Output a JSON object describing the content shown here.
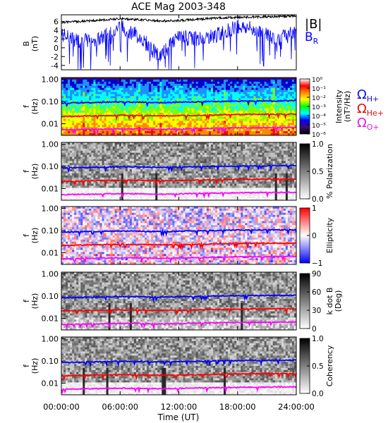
{
  "title": "ACE Mag 2003-348",
  "x_axis": {
    "label": "Time (UT)",
    "ticks": [
      "00:00:00",
      "06:00:00",
      "12:00:00",
      "18:00:00",
      "24:00:00"
    ],
    "range_hours": [
      0,
      24
    ]
  },
  "legend": {
    "b_magnitude": "|B|",
    "b_r": "B",
    "b_r_sub": "R",
    "omega_h": "Ω",
    "omega_h_sub": "H+",
    "omega_he": "Ω",
    "omega_he_sub": "He+",
    "omega_o": "Ω",
    "omega_o_sub": "O+"
  },
  "colors": {
    "b_magnitude": "#000000",
    "b_r": "#0000ff",
    "h_plus": "#0000ff",
    "he_plus": "#ff0000",
    "o_plus": "#ff00ff",
    "legend_h": "#1010e0",
    "legend_he": "#e01010",
    "legend_o": "#e020e0"
  },
  "chart_data": [
    {
      "type": "line",
      "panel": "B",
      "ylabel": "B",
      "yunit": "(nT)",
      "ylim": [
        -5,
        7.5
      ],
      "yticks": [
        6,
        4,
        2,
        0,
        -2,
        -4
      ],
      "series": [
        {
          "name": "|B|",
          "color": "#000000",
          "x": [
            0,
            2,
            4,
            6,
            8,
            10,
            12,
            14,
            16,
            18,
            20,
            22,
            24
          ],
          "values": [
            5.8,
            6.0,
            6.3,
            6.6,
            6.4,
            6.1,
            6.2,
            6.5,
            6.8,
            6.9,
            7.0,
            7.1,
            7.2
          ]
        },
        {
          "name": "B_R",
          "color": "#0000ff",
          "x": [
            0,
            2,
            4,
            6,
            8,
            10,
            12,
            14,
            16,
            18,
            20,
            22,
            24
          ],
          "values": [
            3.0,
            1.5,
            2.0,
            5.0,
            2.5,
            -2.0,
            2.5,
            2.0,
            3.0,
            5.0,
            4.0,
            2.0,
            3.5
          ]
        }
      ]
    },
    {
      "type": "heatmap",
      "panel": "Intensity",
      "ylabel": "f",
      "yunit": "(Hz)",
      "yscale": "log",
      "ylim": [
        0.003,
        1.2
      ],
      "yticks": [
        "1.00",
        "0.10",
        "0.01"
      ],
      "colorbar": {
        "label": "Intensity",
        "unit": "(nT²/Hz)",
        "ticks": [
          "10⁰",
          "10⁻¹",
          "10⁻²",
          "10⁻³",
          "10⁻⁴",
          "10⁻⁵",
          "10⁻⁶"
        ]
      }
    },
    {
      "type": "heatmap",
      "panel": "Polarization",
      "ylabel": "f",
      "yunit": "(Hz)",
      "yscale": "log",
      "ylim": [
        0.003,
        1.2
      ],
      "yticks": [
        "1.00",
        "0.10",
        "0.01"
      ],
      "colorbar": {
        "label": "% Polarization",
        "ticks": [
          "1.0",
          "0.5",
          "0.0"
        ]
      }
    },
    {
      "type": "heatmap",
      "panel": "Ellipticity",
      "ylabel": "f",
      "yunit": "(Hz)",
      "yscale": "log",
      "ylim": [
        0.003,
        1.2
      ],
      "yticks": [
        "1.00",
        "0.10",
        "0.01"
      ],
      "colorbar": {
        "label": "Ellipticity",
        "ticks": [
          "1",
          "0",
          "−1"
        ]
      }
    },
    {
      "type": "heatmap",
      "panel": "k dot B",
      "ylabel": "f",
      "yunit": "(Hz)",
      "yscale": "log",
      "ylim": [
        0.003,
        1.2
      ],
      "yticks": [
        "1.00",
        "0.10",
        "0.01"
      ],
      "colorbar": {
        "label": "k dot B",
        "unit": "(Deg)",
        "ticks": [
          "90",
          "60",
          "30",
          "0"
        ]
      }
    },
    {
      "type": "heatmap",
      "panel": "Coherency",
      "ylabel": "f",
      "yunit": "(Hz)",
      "yscale": "log",
      "ylim": [
        0.003,
        1.2
      ],
      "yticks": [
        "1.00",
        "0.10",
        "0.01"
      ],
      "colorbar": {
        "label": "Coherency",
        "ticks": [
          "1.0",
          "0.5",
          "0.0"
        ]
      }
    },
    {
      "type": "line",
      "panel": "gyrofrequencies",
      "series": [
        {
          "name": "H+",
          "color": "#0000ff",
          "x": [
            0,
            2,
            4,
            6,
            8,
            10,
            12,
            14,
            16,
            18,
            20,
            22,
            24
          ],
          "values": [
            0.085,
            0.088,
            0.092,
            0.095,
            0.094,
            0.09,
            0.093,
            0.097,
            0.101,
            0.104,
            0.106,
            0.107,
            0.109
          ]
        },
        {
          "name": "He+",
          "color": "#ff0000",
          "x": [
            0,
            2,
            4,
            6,
            8,
            10,
            12,
            14,
            16,
            18,
            20,
            22,
            24
          ],
          "values": [
            0.021,
            0.022,
            0.023,
            0.024,
            0.0235,
            0.0225,
            0.023,
            0.024,
            0.025,
            0.026,
            0.0265,
            0.027,
            0.027
          ]
        },
        {
          "name": "O+",
          "color": "#ff00ff",
          "x": [
            0,
            2,
            4,
            6,
            8,
            10,
            12,
            14,
            16,
            18,
            20,
            22,
            24
          ],
          "values": [
            0.0053,
            0.0055,
            0.0057,
            0.0059,
            0.0059,
            0.0056,
            0.0058,
            0.0061,
            0.0063,
            0.0065,
            0.0066,
            0.0067,
            0.0068
          ]
        }
      ]
    }
  ]
}
